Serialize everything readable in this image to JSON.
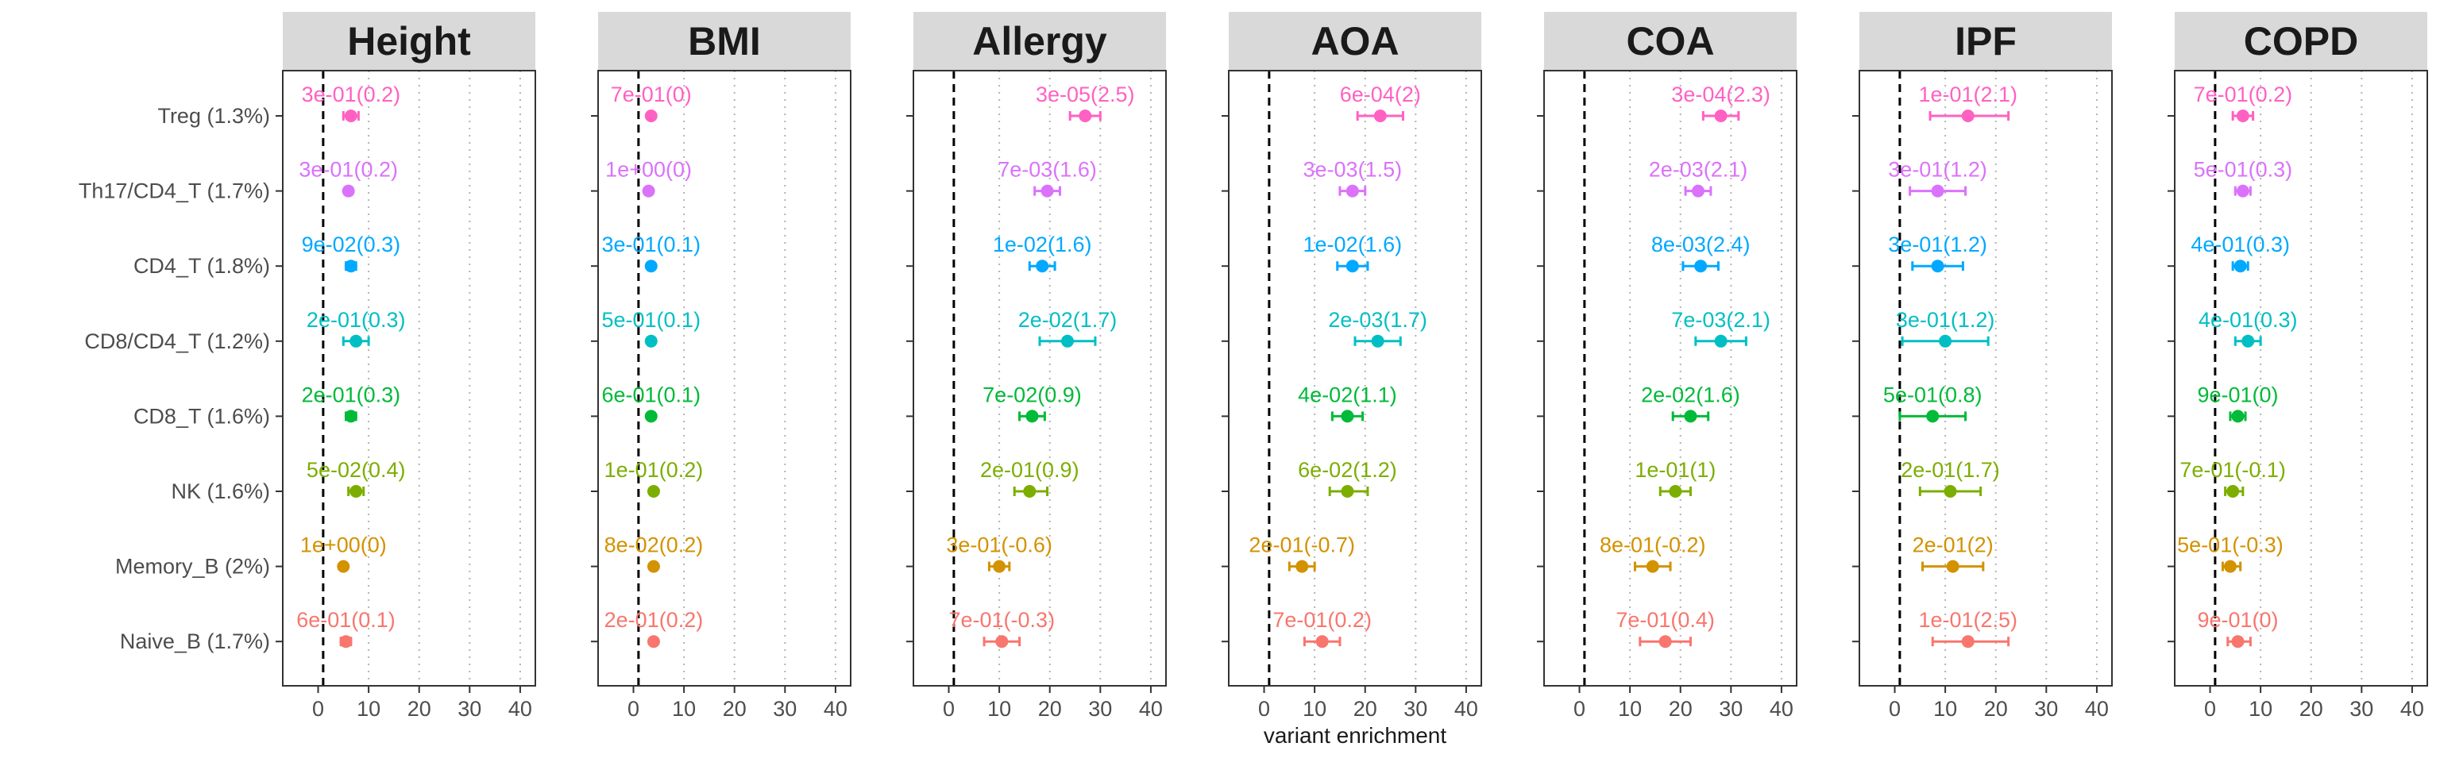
{
  "chart_data": {
    "type": "scatter",
    "subtype": "faceted-forest-plot",
    "xlabel": "variant enrichment",
    "xlim": [
      -7,
      43
    ],
    "xticks": [
      0,
      10,
      20,
      30,
      40
    ],
    "xtick_labels": [
      "0",
      "10",
      "20",
      "30",
      "40"
    ],
    "reference_line_x": 1,
    "grid": "dotted vertical at 10,20,30,40",
    "categories": [
      "Treg (1.3%)",
      "Th17/CD4_T (1.7%)",
      "CD4_T (1.8%)",
      "CD8/CD4_T (1.2%)",
      "CD8_T (1.6%)",
      "NK (1.6%)",
      "Memory_B (2%)",
      "Naive_B (1.7%)"
    ],
    "colors": [
      "#FF61C3",
      "#DB72FB",
      "#00A9FF",
      "#00BFC4",
      "#00BA38",
      "#7CAE00",
      "#D39200",
      "#F8766D"
    ],
    "panels": [
      {
        "title": "Height",
        "points": [
          {
            "value": 6.5,
            "lo": 5,
            "hi": 8,
            "label": "3e-01(0.2)"
          },
          {
            "value": 6,
            "lo": 5.3,
            "hi": 6.7,
            "label": "3e-01(0.2)"
          },
          {
            "value": 6.5,
            "lo": 5.5,
            "hi": 7.5,
            "label": "9e-02(0.3)"
          },
          {
            "value": 7.5,
            "lo": 5,
            "hi": 10,
            "label": "2e-01(0.3)"
          },
          {
            "value": 6.5,
            "lo": 5.5,
            "hi": 7.5,
            "label": "2e-01(0.3)"
          },
          {
            "value": 7.5,
            "lo": 6,
            "hi": 9,
            "label": "5e-02(0.4)"
          },
          {
            "value": 5,
            "lo": 4.5,
            "hi": 5.5,
            "label": "1e+00(0)"
          },
          {
            "value": 5.5,
            "lo": 4.5,
            "hi": 6.5,
            "label": "6e-01(0.1)"
          }
        ]
      },
      {
        "title": "BMI",
        "points": [
          {
            "value": 3.5,
            "lo": 3,
            "hi": 4,
            "label": "7e-01(0)"
          },
          {
            "value": 3,
            "lo": 2.5,
            "hi": 3.5,
            "label": "1e+00(0)"
          },
          {
            "value": 3.5,
            "lo": 3,
            "hi": 4,
            "label": "3e-01(0.1)"
          },
          {
            "value": 3.5,
            "lo": 3,
            "hi": 4,
            "label": "5e-01(0.1)"
          },
          {
            "value": 3.5,
            "lo": 3,
            "hi": 4,
            "label": "6e-01(0.1)"
          },
          {
            "value": 4,
            "lo": 3.5,
            "hi": 4.5,
            "label": "1e-01(0.2)"
          },
          {
            "value": 4,
            "lo": 3.5,
            "hi": 4.5,
            "label": "8e-02(0.2)"
          },
          {
            "value": 4,
            "lo": 3.5,
            "hi": 4.5,
            "label": "2e-01(0.2)"
          }
        ]
      },
      {
        "title": "Allergy",
        "points": [
          {
            "value": 27,
            "lo": 24,
            "hi": 30,
            "label": "3e-05(2.5)"
          },
          {
            "value": 19.5,
            "lo": 17,
            "hi": 22,
            "label": "7e-03(1.6)"
          },
          {
            "value": 18.5,
            "lo": 16,
            "hi": 21,
            "label": "1e-02(1.6)"
          },
          {
            "value": 23.5,
            "lo": 18,
            "hi": 29,
            "label": "2e-02(1.7)"
          },
          {
            "value": 16.5,
            "lo": 14,
            "hi": 19,
            "label": "7e-02(0.9)"
          },
          {
            "value": 16,
            "lo": 13,
            "hi": 19.5,
            "label": "2e-01(0.9)"
          },
          {
            "value": 10,
            "lo": 8,
            "hi": 12,
            "label": "3e-01(-0.6)"
          },
          {
            "value": 10.5,
            "lo": 7,
            "hi": 14,
            "label": "7e-01(-0.3)"
          }
        ]
      },
      {
        "title": "AOA",
        "points": [
          {
            "value": 23,
            "lo": 18.5,
            "hi": 27.5,
            "label": "6e-04(2)"
          },
          {
            "value": 17.5,
            "lo": 15,
            "hi": 20,
            "label": "3e-03(1.5)"
          },
          {
            "value": 17.5,
            "lo": 14.5,
            "hi": 20.5,
            "label": "1e-02(1.6)"
          },
          {
            "value": 22.5,
            "lo": 18,
            "hi": 27,
            "label": "2e-03(1.7)"
          },
          {
            "value": 16.5,
            "lo": 13.5,
            "hi": 19.5,
            "label": "4e-02(1.1)"
          },
          {
            "value": 16.5,
            "lo": 13,
            "hi": 20.5,
            "label": "6e-02(1.2)"
          },
          {
            "value": 7.5,
            "lo": 5,
            "hi": 10,
            "label": "2e-01(-0.7)"
          },
          {
            "value": 11.5,
            "lo": 8,
            "hi": 15,
            "label": "7e-01(0.2)"
          }
        ]
      },
      {
        "title": "COA",
        "points": [
          {
            "value": 28,
            "lo": 24.5,
            "hi": 31.5,
            "label": "3e-04(2.3)"
          },
          {
            "value": 23.5,
            "lo": 21,
            "hi": 26,
            "label": "2e-03(2.1)"
          },
          {
            "value": 24,
            "lo": 20.5,
            "hi": 27.5,
            "label": "8e-03(2.4)"
          },
          {
            "value": 28,
            "lo": 23,
            "hi": 33,
            "label": "7e-03(2.1)"
          },
          {
            "value": 22,
            "lo": 18.5,
            "hi": 25.5,
            "label": "2e-02(1.6)"
          },
          {
            "value": 19,
            "lo": 16,
            "hi": 22,
            "label": "1e-01(1)"
          },
          {
            "value": 14.5,
            "lo": 11,
            "hi": 18,
            "label": "8e-01(-0.2)"
          },
          {
            "value": 17,
            "lo": 12,
            "hi": 22,
            "label": "7e-01(0.4)"
          }
        ]
      },
      {
        "title": "IPF",
        "points": [
          {
            "value": 14.5,
            "lo": 7,
            "hi": 22.5,
            "label": "1e-01(2.1)"
          },
          {
            "value": 8.5,
            "lo": 3,
            "hi": 14,
            "label": "3e-01(1.2)"
          },
          {
            "value": 8.5,
            "lo": 3.5,
            "hi": 13.5,
            "label": "3e-01(1.2)"
          },
          {
            "value": 10,
            "lo": 1.5,
            "hi": 18.5,
            "label": "3e-01(1.2)"
          },
          {
            "value": 7.5,
            "lo": 1,
            "hi": 14,
            "label": "5e-01(0.8)"
          },
          {
            "value": 11,
            "lo": 5,
            "hi": 17,
            "label": "2e-01(1.7)"
          },
          {
            "value": 11.5,
            "lo": 5.5,
            "hi": 17.5,
            "label": "2e-01(2)"
          },
          {
            "value": 14.5,
            "lo": 7.5,
            "hi": 22.5,
            "label": "1e-01(2.5)"
          }
        ]
      },
      {
        "title": "COPD",
        "points": [
          {
            "value": 6.5,
            "lo": 4.5,
            "hi": 8.5,
            "label": "7e-01(0.2)"
          },
          {
            "value": 6.5,
            "lo": 5,
            "hi": 8,
            "label": "5e-01(0.3)"
          },
          {
            "value": 6,
            "lo": 4.5,
            "hi": 7.5,
            "label": "4e-01(0.3)"
          },
          {
            "value": 7.5,
            "lo": 5,
            "hi": 10,
            "label": "4e-01(0.3)"
          },
          {
            "value": 5.5,
            "lo": 4,
            "hi": 7,
            "label": "9e-01(0)"
          },
          {
            "value": 4.5,
            "lo": 3,
            "hi": 6.5,
            "label": "7e-01(-0.1)"
          },
          {
            "value": 4,
            "lo": 2.5,
            "hi": 6,
            "label": "5e-01(-0.3)"
          },
          {
            "value": 5.5,
            "lo": 3.5,
            "hi": 8,
            "label": "9e-01(0)"
          }
        ]
      }
    ]
  }
}
